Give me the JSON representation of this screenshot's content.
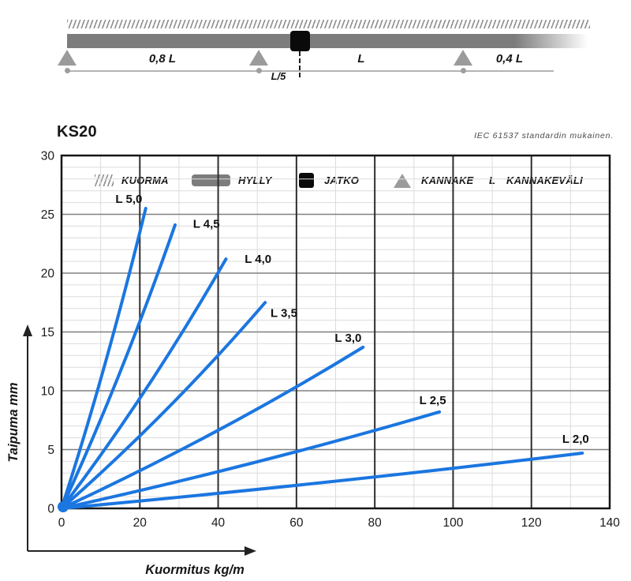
{
  "header": {
    "title": "KS20",
    "note": "IEC 61537 standardin mukainen."
  },
  "diagram": {
    "span_left": "0,8 L",
    "span_mid": "L",
    "span_right": "0,4 L",
    "joint_offset": "L/5"
  },
  "legend": {
    "items": [
      {
        "icon": "hatch-icon",
        "label": "KUORMA"
      },
      {
        "icon": "shelf-icon",
        "label": "HYLLY"
      },
      {
        "icon": "joint-icon",
        "label": "JATKO"
      },
      {
        "icon": "support-triangle-icon",
        "label": "KANNAKE"
      },
      {
        "icon": "length-symbol",
        "symbol": "L",
        "label": "KANNAKEVÄLI"
      }
    ]
  },
  "chart_data": {
    "type": "line",
    "title": "KS20",
    "note": "IEC 61537 standardin mukainen.",
    "xlabel": "Kuormitus kg/m",
    "ylabel": "Taipuma mm",
    "xlim": [
      0,
      140
    ],
    "ylim": [
      0,
      30
    ],
    "x_ticks": [
      0,
      20,
      40,
      60,
      80,
      100,
      120,
      140
    ],
    "y_ticks": [
      0,
      5,
      10,
      15,
      20,
      25,
      30
    ],
    "x_minor_step": 10,
    "x_major_step": 20,
    "y_minor_step": 1,
    "y_major_step": 5,
    "grid": true,
    "line_color": "#1b76e0",
    "series": [
      {
        "name": "L 5,0",
        "x": [
          0,
          21.5
        ],
        "y": [
          0,
          25.5
        ],
        "label_at": [
          17.2,
          26.3
        ]
      },
      {
        "name": "L 4,5",
        "x": [
          0,
          29.0
        ],
        "y": [
          0,
          24.1
        ],
        "label_at": [
          37.0,
          24.2
        ]
      },
      {
        "name": "L 4,0",
        "x": [
          0,
          42.0
        ],
        "y": [
          0,
          21.2
        ],
        "label_at": [
          50.2,
          21.2
        ]
      },
      {
        "name": "L 3,5",
        "x": [
          0,
          52.0
        ],
        "y": [
          0,
          17.5
        ],
        "label_at": [
          56.8,
          16.6
        ]
      },
      {
        "name": "L 3,0",
        "x": [
          0,
          77.0
        ],
        "y": [
          0,
          13.7
        ],
        "label_at": [
          73.2,
          14.5
        ]
      },
      {
        "name": "L 2,5",
        "x": [
          0,
          96.5
        ],
        "y": [
          0,
          8.2
        ],
        "label_at": [
          94.8,
          9.2
        ]
      },
      {
        "name": "L 2,0",
        "x": [
          0,
          133.0
        ],
        "y": [
          0,
          4.7
        ],
        "label_at": [
          131.3,
          5.9
        ]
      }
    ]
  }
}
